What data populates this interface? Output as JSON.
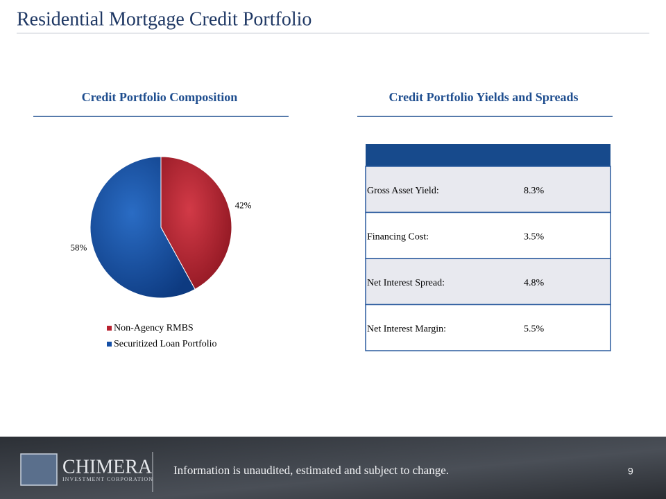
{
  "title": "Residential Mortgage Credit Portfolio",
  "chart_data": {
    "type": "pie",
    "title": "Credit Portfolio Composition",
    "categories": [
      "Non-Agency RMBS",
      "Securitized Loan Portfolio"
    ],
    "values": [
      42,
      58
    ],
    "value_labels": [
      "42%",
      "58%"
    ],
    "colors": [
      "#b8212f",
      "#1550a6"
    ]
  },
  "table": {
    "title": "Credit Portfolio Yields and Spreads",
    "rows": [
      [
        "Gross Asset Yield:",
        "8.3%"
      ],
      [
        "Financing Cost:",
        "3.5%"
      ],
      [
        "Net Interest Spread:",
        "4.8%"
      ],
      [
        "Net Interest Margin:",
        "5.5%"
      ]
    ]
  },
  "footer": {
    "logo": "CHIMERA",
    "logo_sub": "INVESTMENT CORPORATION",
    "note": "Information is unaudited, estimated and subject to change.",
    "page": "9"
  }
}
